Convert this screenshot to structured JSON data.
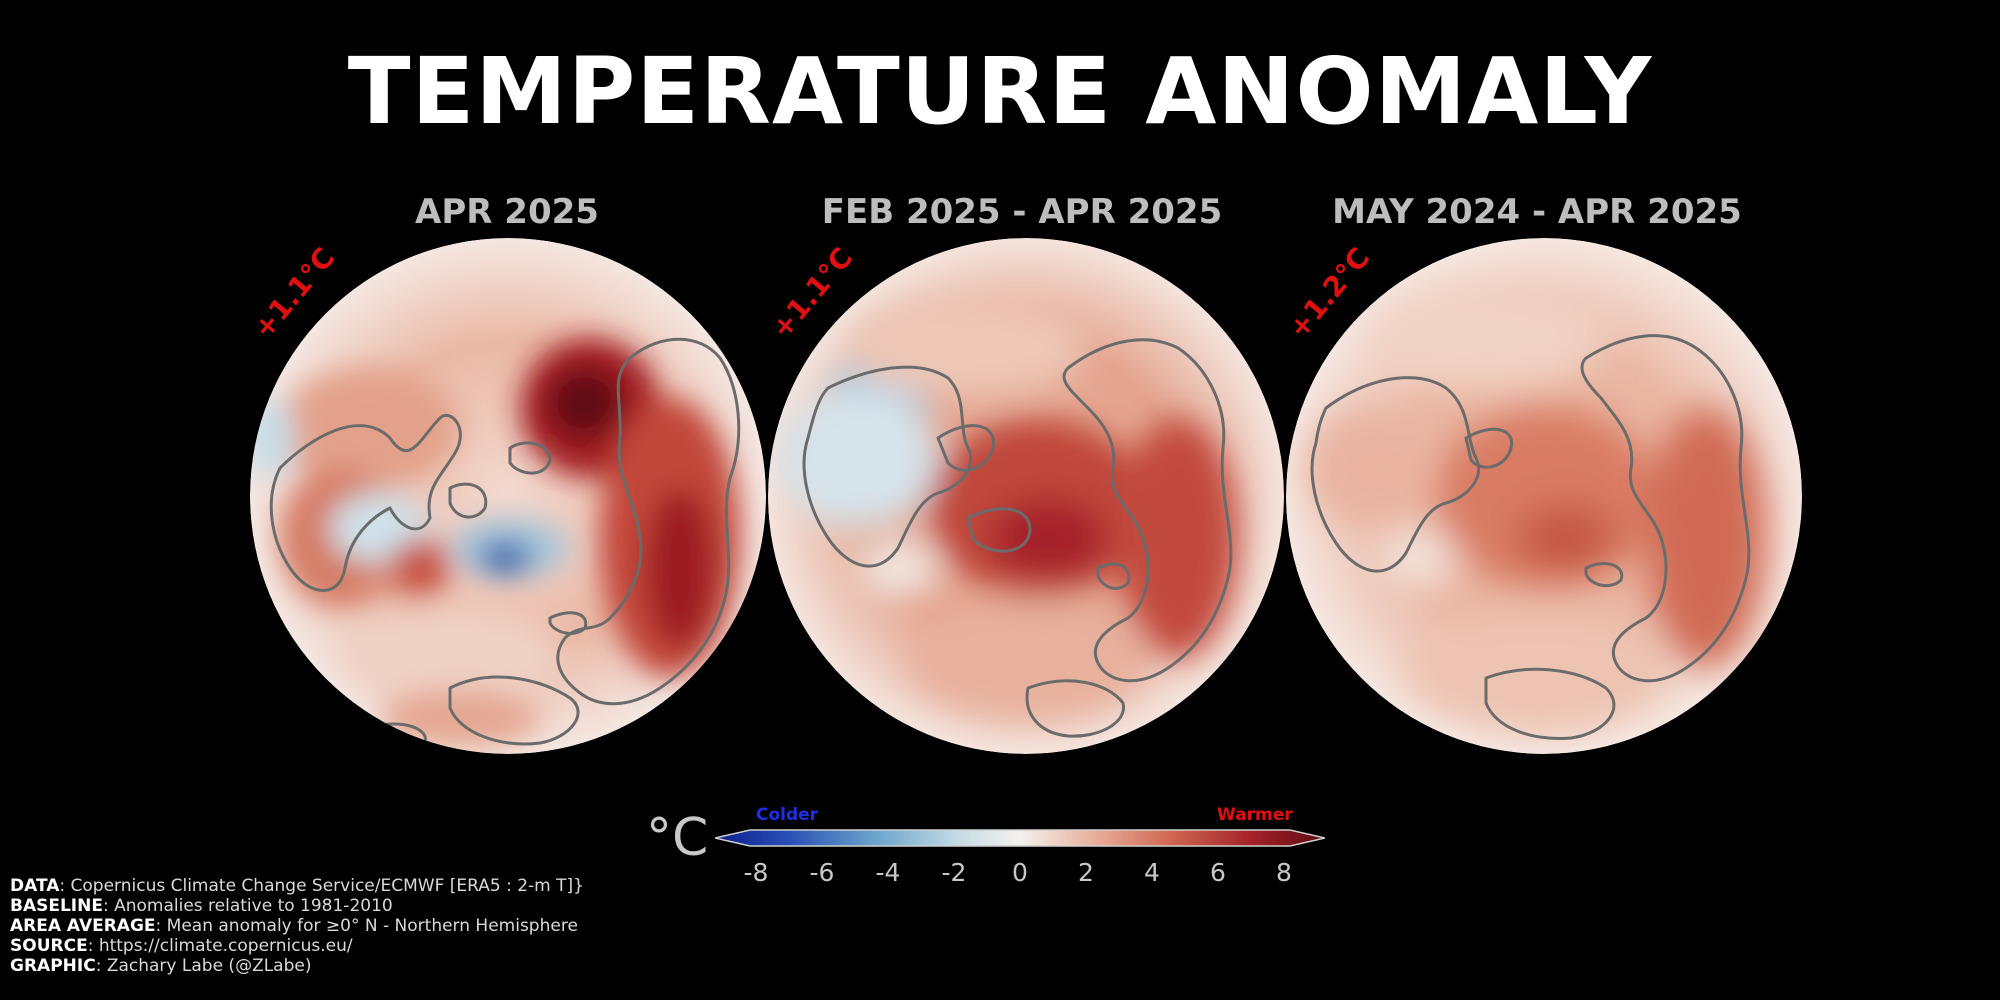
{
  "title": "TEMPERATURE ANOMALY",
  "panels": [
    {
      "title": "APR 2025",
      "average": "+1.1°C"
    },
    {
      "title": "FEB 2025 - APR 2025",
      "average": "+1.1°C"
    },
    {
      "title": "MAY 2024 - APR 2025",
      "average": "+1.2°C"
    }
  ],
  "colorbar": {
    "unit": "°C",
    "cold_label": "Colder",
    "warm_label": "Warmer",
    "ticks": [
      "-8",
      "-6",
      "-4",
      "-2",
      "0",
      "2",
      "4",
      "6",
      "8"
    ],
    "colors": {
      "cold": "#0a1e8c",
      "neutral": "#f4f1ee",
      "warm": "#5e0a14",
      "cold_label": "#1f2fe6",
      "warm_label": "#e01010"
    }
  },
  "credits": [
    {
      "key": "DATA",
      "value": ": Copernicus Climate Change Service/ECMWF [ERA5 : 2-m T]}"
    },
    {
      "key": "BASELINE",
      "value": ": Anomalies relative to 1981-2010"
    },
    {
      "key": "AREA AVERAGE",
      "value": ": Mean anomaly for ≥0° N - Northern Hemisphere"
    },
    {
      "key": "SOURCE",
      "value": ": https://climate.copernicus.eu/"
    },
    {
      "key": "GRAPHIC",
      "value": ": Zachary Labe (@ZLabe)"
    }
  ]
}
